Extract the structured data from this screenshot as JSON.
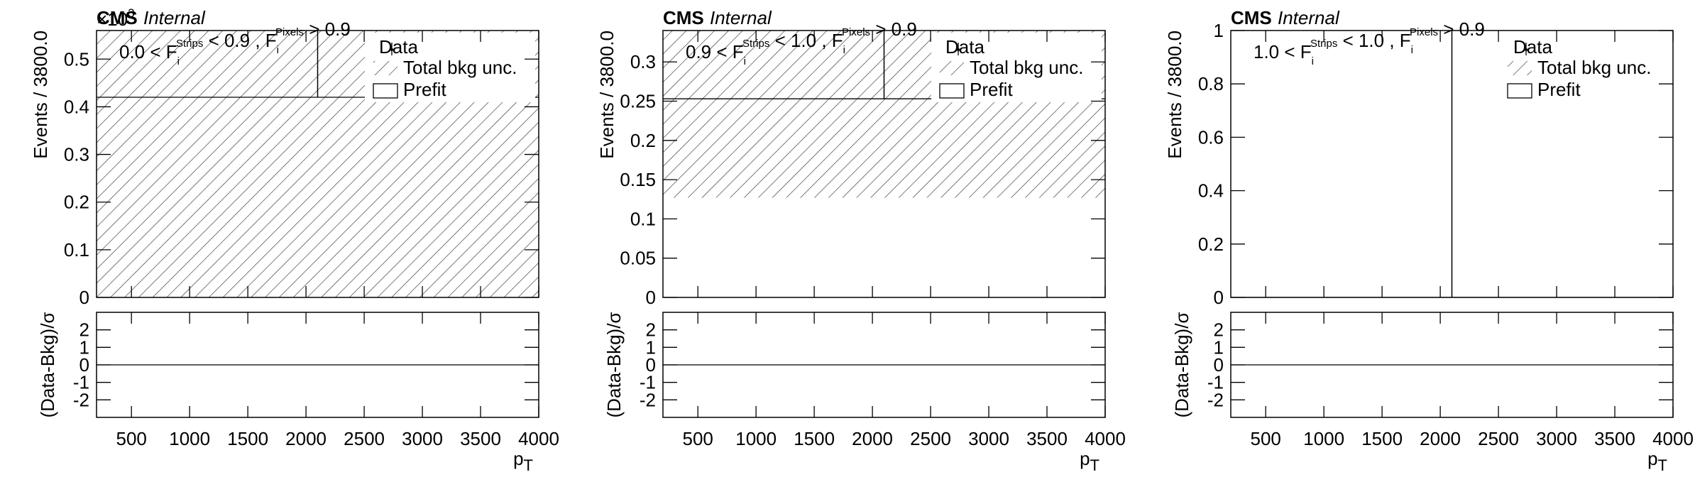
{
  "chart_data": [
    {
      "type": "hist",
      "experiment": "CMS",
      "status": "Internal",
      "y_exponent": {
        "base": "×10",
        "power": "3"
      },
      "region": [
        {
          "text": "0.0 < F"
        },
        {
          "sub": "i",
          "sup": "Strips"
        },
        {
          "text": " < 0.9 , F"
        },
        {
          "sub": "i",
          "sup": "Pixels"
        },
        {
          "text": " > 0.9"
        }
      ],
      "y_label": "Events / 3800.0",
      "ratio_label": "(Data-Bkg)/σ",
      "x_label": "p",
      "x_label_sub": "T",
      "legend": [
        "Data",
        "Total bkg unc.",
        "Prefit"
      ],
      "xlim": [
        200,
        4000
      ],
      "xticks": [
        500,
        1000,
        1500,
        2000,
        2500,
        3000,
        3500,
        4000
      ],
      "ylim": [
        0,
        0.56
      ],
      "yticks": [
        0,
        0.1,
        0.2,
        0.3,
        0.4,
        0.5
      ],
      "ratio_ylim": [
        -3,
        3
      ],
      "ratio_yticks": [
        -2,
        -1,
        0,
        1,
        2
      ],
      "prefit": 0.42,
      "unc": 0.42,
      "data": {
        "x": 2100,
        "low": 0.42
      },
      "ratio": 0
    },
    {
      "type": "hist",
      "experiment": "CMS",
      "status": "Internal",
      "region": [
        {
          "text": "0.9 < F"
        },
        {
          "sub": "i",
          "sup": "Strips"
        },
        {
          "text": " < 1.0 , F"
        },
        {
          "sub": "i",
          "sup": "Pixels"
        },
        {
          "text": " > 0.9"
        }
      ],
      "y_label": "Events / 3800.0",
      "ratio_label": "(Data-Bkg)/σ",
      "x_label": "p",
      "x_label_sub": "T",
      "legend": [
        "Data",
        "Total bkg unc.",
        "Prefit"
      ],
      "xlim": [
        200,
        4000
      ],
      "xticks": [
        500,
        1000,
        1500,
        2000,
        2500,
        3000,
        3500,
        4000
      ],
      "ylim": [
        0,
        0.34
      ],
      "yticks": [
        0,
        0.05,
        0.1,
        0.15,
        0.2,
        0.25,
        0.3
      ],
      "ratio_ylim": [
        -3,
        3
      ],
      "ratio_yticks": [
        -2,
        -1,
        0,
        1,
        2
      ],
      "prefit": 0.253,
      "unc": 0.126,
      "data": {
        "x": 2100,
        "low": 0.253
      },
      "ratio": 0
    },
    {
      "type": "hist",
      "experiment": "CMS",
      "status": "Internal",
      "region": [
        {
          "text": "1.0 < F"
        },
        {
          "sub": "i",
          "sup": "Strips"
        },
        {
          "text": " < 1.0 , F"
        },
        {
          "sub": "i",
          "sup": "Pixels"
        },
        {
          "text": " > 0.9"
        }
      ],
      "y_label": "Events / 3800.0",
      "ratio_label": "(Data-Bkg)/σ",
      "x_label": "p",
      "x_label_sub": "T",
      "legend": [
        "Data",
        "Total bkg unc.",
        "Prefit"
      ],
      "xlim": [
        200,
        4000
      ],
      "xticks": [
        500,
        1000,
        1500,
        2000,
        2500,
        3000,
        3500,
        4000
      ],
      "ylim": [
        0,
        1
      ],
      "yticks": [
        0,
        0.2,
        0.4,
        0.6,
        0.8,
        1
      ],
      "ratio_ylim": [
        -3,
        3
      ],
      "ratio_yticks": [
        -2,
        -1,
        0,
        1,
        2
      ],
      "prefit": 0,
      "unc": 0,
      "data": {
        "x": 2100,
        "low": 0
      },
      "ratio": 0
    }
  ]
}
